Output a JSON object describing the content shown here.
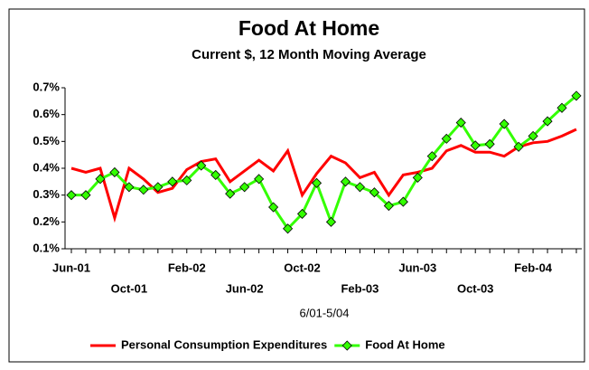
{
  "chart_data": {
    "type": "line",
    "title": "Food At Home",
    "subtitle": "Current $, 12 Month Moving Average",
    "x_label": "6/01-5/04",
    "categories": [
      "Jun-01",
      null,
      null,
      null,
      "Oct-01",
      null,
      null,
      null,
      "Feb-02",
      null,
      null,
      null,
      "Jun-02",
      null,
      null,
      null,
      "Oct-02",
      null,
      null,
      null,
      "Feb-03",
      null,
      null,
      null,
      "Jun-03",
      null,
      null,
      null,
      "Oct-03",
      null,
      null,
      null,
      "Feb-04",
      null,
      null,
      null
    ],
    "series": [
      {
        "name": "Personal Consumption Expenditures",
        "color": "#ff0000",
        "marker": false,
        "values": [
          0.4,
          0.385,
          0.4,
          0.215,
          0.4,
          0.36,
          0.31,
          0.325,
          0.395,
          0.425,
          0.435,
          0.35,
          0.39,
          0.43,
          0.39,
          0.465,
          0.3,
          0.38,
          0.445,
          0.42,
          0.365,
          0.385,
          0.3,
          0.375,
          0.385,
          0.4,
          0.465,
          0.485,
          0.46,
          0.46,
          0.445,
          0.48,
          0.495,
          0.5,
          0.52,
          0.545
        ]
      },
      {
        "name": "Food At Home",
        "color": "#33ff00",
        "marker": true,
        "values": [
          0.3,
          0.3,
          0.36,
          0.385,
          0.33,
          0.32,
          0.33,
          0.35,
          0.355,
          0.41,
          0.375,
          0.305,
          0.33,
          0.36,
          0.255,
          0.175,
          0.23,
          0.345,
          0.2,
          0.35,
          0.33,
          0.31,
          0.26,
          0.275,
          0.365,
          0.445,
          0.51,
          0.57,
          0.485,
          0.49,
          0.565,
          0.48,
          0.52,
          0.575,
          0.625,
          0.67
        ]
      }
    ],
    "ylim": [
      0.1,
      0.7
    ],
    "yticks": [
      {
        "value": 0.1,
        "label": "0.1%"
      },
      {
        "value": 0.2,
        "label": "0.2%"
      },
      {
        "value": 0.3,
        "label": "0.3%"
      },
      {
        "value": 0.4,
        "label": "0.4%"
      },
      {
        "value": 0.5,
        "label": "0.5%"
      },
      {
        "value": 0.6,
        "label": "0.6%"
      },
      {
        "value": 0.7,
        "label": "0.7%"
      }
    ],
    "grid": false,
    "legend": "bottom"
  }
}
